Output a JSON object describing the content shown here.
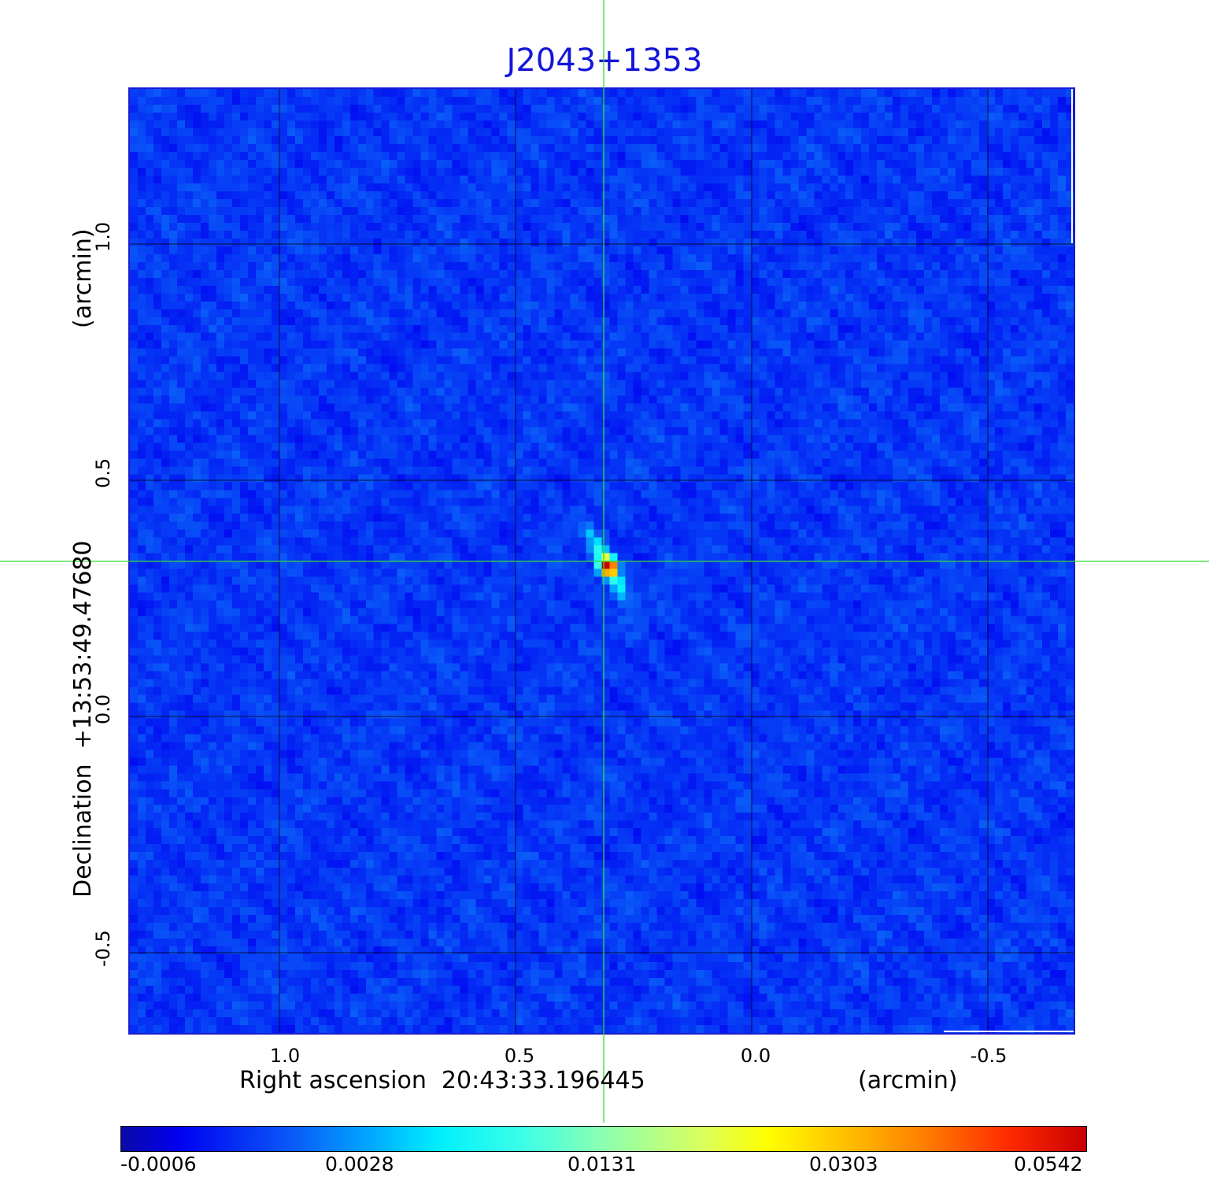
{
  "title": "J2043+1353",
  "x_axis": {
    "label": "Right ascension  20:43:33.196445",
    "unit": "(arcmin)",
    "ticks": [
      "1.0",
      "0.5",
      "0.0",
      "-0.5"
    ]
  },
  "y_axis": {
    "label": "Declination  +13:53:49.47680",
    "unit": "(arcmin)",
    "ticks": [
      "1.0",
      "0.5",
      "0.0",
      "-0.5"
    ]
  },
  "colorbar": {
    "ticks": [
      "-0.0006",
      "0.0028",
      "0.0131",
      "0.0303",
      "0.0542"
    ]
  },
  "colors": {
    "title": "#1515d8",
    "background_map": "#1846f2",
    "grid": "#000000",
    "crosshair": "#33dd33",
    "frame": "#1a1ad0"
  },
  "source": {
    "peak_offset_ra_arcmin": 0.31,
    "peak_offset_dec_arcmin": 0.33,
    "peak_value": 0.0542
  }
}
